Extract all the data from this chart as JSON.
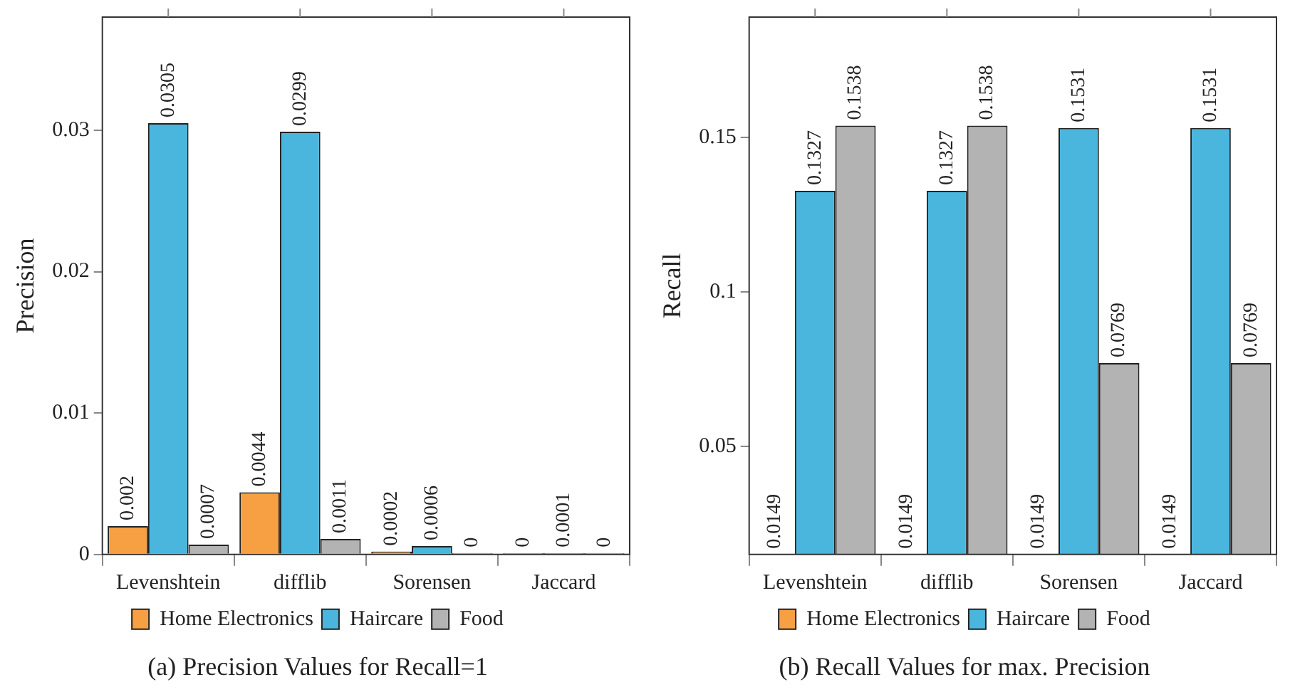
{
  "chart_data": [
    {
      "type": "bar",
      "title": "(a) Precision Values for Recall=1",
      "ylabel": "Precision",
      "categories": [
        "Levenshtein",
        "difflib",
        "Sorensen",
        "Jaccard"
      ],
      "series": [
        {
          "name": "Home Electronics",
          "color": "#f7a043",
          "values": [
            0.002,
            0.0044,
            0.0002,
            0
          ]
        },
        {
          "name": "Haircare",
          "color": "#4ab6de",
          "values": [
            0.0305,
            0.0299,
            0.0006,
            0.0001
          ]
        },
        {
          "name": "Food",
          "color": "#b3b3b3",
          "values": [
            0.0007,
            0.0011,
            0,
            0
          ]
        }
      ],
      "ylim": [
        0,
        0.038
      ],
      "yticks": [
        0,
        0.01,
        0.02,
        0.03
      ],
      "grid": false,
      "legend": "bottom",
      "data_labels": true
    },
    {
      "type": "bar",
      "title": "(b) Recall Values for max. Precision",
      "ylabel": "Recall",
      "categories": [
        "Levenshtein",
        "difflib",
        "Sorensen",
        "Jaccard"
      ],
      "series": [
        {
          "name": "Home Electronics",
          "color": "#f7a043",
          "values": [
            0.0149,
            0.0149,
            0.0149,
            0.0149
          ]
        },
        {
          "name": "Haircare",
          "color": "#4ab6de",
          "values": [
            0.1327,
            0.1327,
            0.1531,
            0.1531
          ]
        },
        {
          "name": "Food",
          "color": "#b3b3b3",
          "values": [
            0.1538,
            0.1538,
            0.0769,
            0.0769
          ]
        }
      ],
      "ylim": [
        0.0149,
        0.189
      ],
      "yticks": [
        0.05,
        0.1,
        0.15
      ],
      "grid": false,
      "legend": "bottom",
      "data_labels": true
    }
  ]
}
